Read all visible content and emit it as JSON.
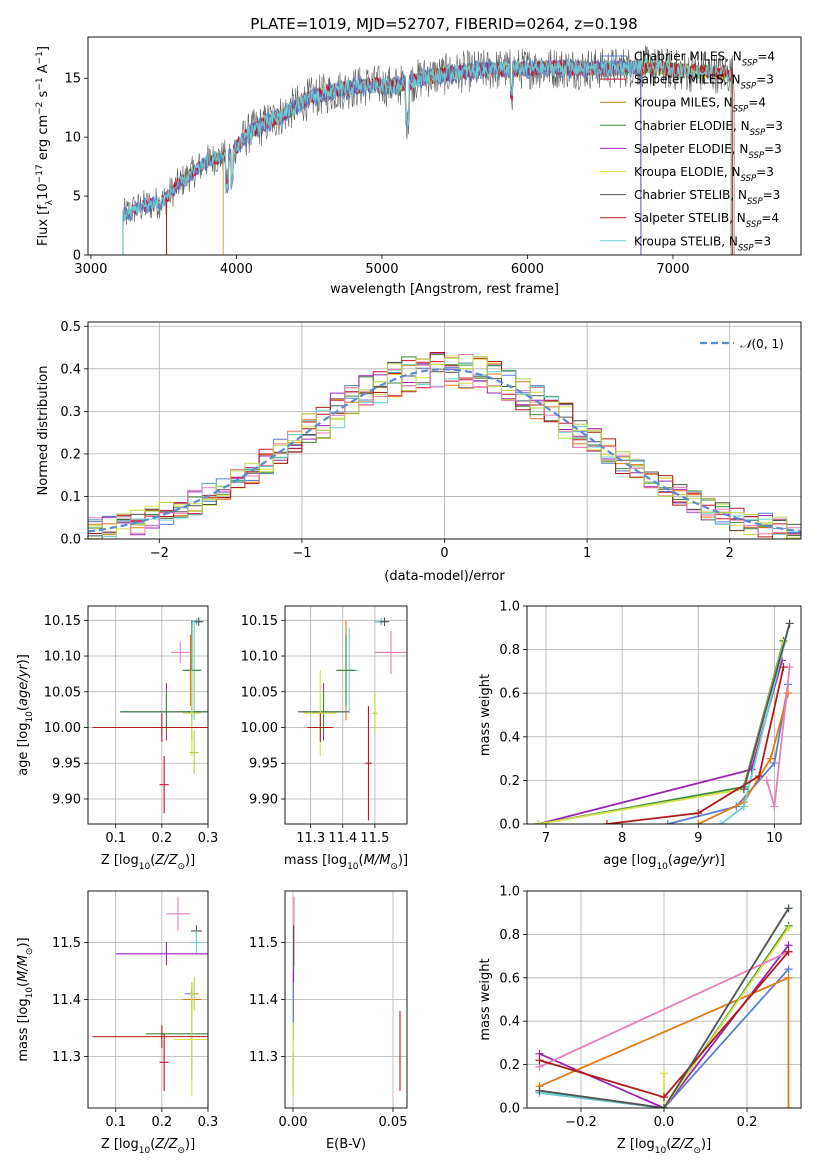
{
  "figure": {
    "title": "PLATE=1019, MJD=52707, FIBERID=0264, z=0.198"
  },
  "colors": {
    "series": [
      "#5b7fcf",
      "#c8102e",
      "#e07b19",
      "#3d8a3d",
      "#9b25b3",
      "#d8e04a",
      "#555555",
      "#b01c1c",
      "#6dd1d1",
      "#e87fb8",
      "#b5d642"
    ]
  },
  "chart_data": [
    {
      "id": "spectrum",
      "type": "line",
      "xlabel": "wavelength [Angstrom, rest frame]",
      "ylabel": "Flux [f_λ 10^-17 erg cm^-2 s^-1 A^-1]",
      "xlim": [
        2980,
        7880
      ],
      "ylim": [
        0,
        18.5
      ],
      "xticks": [
        3000,
        4000,
        5000,
        6000,
        7000
      ],
      "yticks": [
        0,
        5,
        10,
        15
      ],
      "grid": false,
      "legend_position": "right",
      "series": [
        {
          "name": "Chabrier MILES, N_SSP=4",
          "color": "#5b7fcf"
        },
        {
          "name": "Salpeter MILES, N_SSP=3",
          "color": "#c8102e"
        },
        {
          "name": "Kroupa MILES, N_SSP=4",
          "color": "#b8860b"
        },
        {
          "name": "Chabrier ELODIE, N_SSP=3",
          "color": "#3d8a3d"
        },
        {
          "name": "Salpeter ELODIE, N_SSP=3",
          "color": "#9b25b3"
        },
        {
          "name": "Kroupa ELODIE, N_SSP=3",
          "color": "#d8e04a"
        },
        {
          "name": "Chabrier STELIB, N_SSP=3",
          "color": "#555555"
        },
        {
          "name": "Salpeter STELIB, N_SSP=4",
          "color": "#b01c1c"
        },
        {
          "name": "Kroupa STELIB, N_SSP=3",
          "color": "#6dd1d1"
        }
      ],
      "spectrum_anchors": {
        "x": [
          3220,
          3300,
          3500,
          3600,
          3800,
          3950,
          4100,
          4300,
          4500,
          4700,
          4900,
          5100,
          5300,
          5600,
          5900,
          6200,
          6500,
          6800,
          7100,
          7400
        ],
        "y": [
          3.3,
          3.9,
          4.6,
          6.0,
          8.0,
          8.5,
          10.5,
          11.8,
          13.3,
          14.0,
          14.4,
          14.3,
          15.1,
          15.6,
          15.8,
          15.9,
          15.8,
          16.0,
          15.6,
          15.4
        ]
      }
    },
    {
      "id": "residuals",
      "type": "line",
      "xlabel": "(data-model)/error",
      "ylabel": "Normed distribution",
      "xlim": [
        -2.5,
        2.5
      ],
      "ylim": [
        0,
        0.51
      ],
      "xticks": [
        -2,
        -1,
        0,
        1,
        2
      ],
      "yticks": [
        0.0,
        0.1,
        0.2,
        0.3,
        0.4,
        0.5
      ],
      "grid": true,
      "legend_position": "top-right",
      "normal_label": "N(0,1)",
      "bins": 50
    },
    {
      "id": "age-vs-Z",
      "type": "scatter",
      "xlabel": "Z [log10(Z/Z☉)]",
      "ylabel": "age [log10(age/yr)]",
      "xlim": [
        0.04,
        0.3
      ],
      "ylim": [
        9.865,
        10.17
      ],
      "xticks": [
        0.1,
        0.2,
        0.3
      ],
      "yticks": [
        9.9,
        9.95,
        10.0,
        10.05,
        10.1,
        10.15
      ],
      "grid": true,
      "points": [
        {
          "x": 0.275,
          "y": 10.148,
          "xerr": 0.012,
          "yerr": 0.004,
          "color": "#5b7fcf"
        },
        {
          "x": 0.276,
          "y": 10.148,
          "xerr": 0.012,
          "yerr": 0.005,
          "color": "#6dd1d1"
        },
        {
          "x": 0.28,
          "y": 10.148,
          "xerr": 0.01,
          "yerr": 0.006,
          "color": "#555555"
        },
        {
          "x": 0.24,
          "y": 10.105,
          "xerr": 0.02,
          "yerr": 0.015,
          "color": "#e87fb8"
        },
        {
          "x": 0.262,
          "y": 10.08,
          "xerr": 0.015,
          "yerr": 0.05,
          "color": "#e07b19"
        },
        {
          "x": 0.27,
          "y": 10.08,
          "xerr": 0.015,
          "yerr": 0.07,
          "color": "#6dd1d1"
        },
        {
          "x": 0.265,
          "y": 10.08,
          "xerr": 0.02,
          "yerr": 0.07,
          "color": "#3d8a3d"
        },
        {
          "x": 0.21,
          "y": 10.022,
          "xerr": 0.1,
          "yerr": 0.04,
          "color": "#9b25b3"
        },
        {
          "x": 0.265,
          "y": 10.022,
          "xerr": 0.02,
          "yerr": 0.04,
          "color": "#5b7fcf"
        },
        {
          "x": 0.21,
          "y": 10.022,
          "xerr": 0.1,
          "yerr": 0.03,
          "color": "#3d8a3d"
        },
        {
          "x": 0.265,
          "y": 10.02,
          "xerr": 0.02,
          "yerr": 0.06,
          "color": "#d8e04a"
        },
        {
          "x": 0.2,
          "y": 10.0,
          "xerr": 0.15,
          "yerr": 0.02,
          "color": "#b01c1c"
        },
        {
          "x": 0.205,
          "y": 9.92,
          "xerr": 0.01,
          "yerr": 0.04,
          "color": "#c8102e"
        },
        {
          "x": 0.27,
          "y": 9.965,
          "xerr": 0.01,
          "yerr": 0.03,
          "color": "#b5d642"
        }
      ]
    },
    {
      "id": "age-vs-mass",
      "type": "scatter",
      "xlabel": "mass [log10(M/M☉)]",
      "ylabel": "",
      "xlim": [
        11.22,
        11.6
      ],
      "ylim": [
        9.865,
        10.17
      ],
      "xticks": [
        11.3,
        11.4,
        11.5
      ],
      "yticks": [
        9.9,
        9.95,
        10.0,
        10.05,
        10.1,
        10.15
      ],
      "grid": true,
      "points": [
        {
          "x": 11.52,
          "y": 10.148,
          "xerr": 0.02,
          "yerr": 0.004,
          "color": "#5b7fcf"
        },
        {
          "x": 11.52,
          "y": 10.148,
          "xerr": 0.02,
          "yerr": 0.005,
          "color": "#6dd1d1"
        },
        {
          "x": 11.53,
          "y": 10.148,
          "xerr": 0.015,
          "yerr": 0.006,
          "color": "#555555"
        },
        {
          "x": 11.55,
          "y": 10.105,
          "xerr": 0.05,
          "yerr": 0.03,
          "color": "#e87fb8"
        },
        {
          "x": 11.41,
          "y": 10.08,
          "xerr": 0.03,
          "yerr": 0.07,
          "color": "#e07b19"
        },
        {
          "x": 11.42,
          "y": 10.08,
          "xerr": 0.03,
          "yerr": 0.06,
          "color": "#6dd1d1"
        },
        {
          "x": 11.41,
          "y": 10.08,
          "xerr": 0.03,
          "yerr": 0.05,
          "color": "#3d8a3d"
        },
        {
          "x": 11.34,
          "y": 10.022,
          "xerr": 0.08,
          "yerr": 0.04,
          "color": "#9b25b3"
        },
        {
          "x": 11.34,
          "y": 10.022,
          "xerr": 0.07,
          "yerr": 0.03,
          "color": "#3d8a3d"
        },
        {
          "x": 11.33,
          "y": 10.02,
          "xerr": 0.05,
          "yerr": 0.06,
          "color": "#d8e04a"
        },
        {
          "x": 11.33,
          "y": 10.0,
          "xerr": 0.04,
          "yerr": 0.02,
          "color": "#b01c1c"
        },
        {
          "x": 11.48,
          "y": 9.95,
          "xerr": 0.01,
          "yerr": 0.08,
          "color": "#c8102e"
        },
        {
          "x": 11.5,
          "y": 10.02,
          "xerr": 0.01,
          "yerr": 0.03,
          "color": "#b5d642"
        }
      ]
    },
    {
      "id": "massweight-vs-age",
      "type": "line",
      "xlabel": "age [log10(age/yr)]",
      "ylabel": "mass weight",
      "xlim": [
        6.75,
        10.35
      ],
      "ylim": [
        0,
        1.0
      ],
      "xticks": [
        7,
        8,
        9,
        10
      ],
      "yticks": [
        0.0,
        0.2,
        0.4,
        0.6,
        0.8,
        1.0
      ],
      "grid": true,
      "series": [
        {
          "color": "#5b7fcf",
          "x": [
            8.6,
            9.5,
            10.0,
            10.18
          ],
          "y": [
            0.0,
            0.08,
            0.28,
            0.64
          ]
        },
        {
          "color": "#9b25b3",
          "x": [
            6.9,
            9.7,
            10.1
          ],
          "y": [
            0.0,
            0.25,
            0.75
          ]
        },
        {
          "color": "#e07b19",
          "x": [
            9.0,
            9.6,
            9.95,
            10.18
          ],
          "y": [
            0.0,
            0.1,
            0.3,
            0.6
          ]
        },
        {
          "color": "#3d8a3d",
          "x": [
            6.9,
            9.6,
            10.12
          ],
          "y": [
            0.0,
            0.17,
            0.84
          ]
        },
        {
          "color": "#d8e04a",
          "x": [
            6.9,
            9.6,
            10.12
          ],
          "y": [
            0.0,
            0.16,
            0.83
          ]
        },
        {
          "color": "#6dd1d1",
          "x": [
            9.3,
            9.6,
            10.2
          ],
          "y": [
            0.0,
            0.08,
            0.92
          ]
        },
        {
          "color": "#e87fb8",
          "x": [
            9.9,
            10.0,
            10.2
          ],
          "y": [
            0.2,
            0.08,
            0.72
          ]
        },
        {
          "color": "#b01c1c",
          "x": [
            7.8,
            9.0,
            9.8,
            10.12
          ],
          "y": [
            0.0,
            0.05,
            0.22,
            0.72
          ]
        },
        {
          "color": "#555555",
          "x": [
            9.6,
            10.2
          ],
          "y": [
            0.16,
            0.92
          ]
        }
      ]
    },
    {
      "id": "mass-vs-Z",
      "type": "scatter",
      "xlabel": "Z [log10(Z/Z☉)]",
      "ylabel": "mass [log10(M/M☉)]",
      "xlim": [
        0.04,
        0.3
      ],
      "ylim": [
        11.21,
        11.59
      ],
      "xticks": [
        0.1,
        0.2,
        0.3
      ],
      "yticks": [
        11.3,
        11.4,
        11.5
      ],
      "grid": true,
      "points": [
        {
          "x": 0.235,
          "y": 11.55,
          "xerr": 0.025,
          "yerr": 0.03,
          "color": "#e87fb8"
        },
        {
          "x": 0.275,
          "y": 11.52,
          "xerr": 0.012,
          "yerr": 0.01,
          "color": "#555555"
        },
        {
          "x": 0.275,
          "y": 11.5,
          "xerr": 0.012,
          "yerr": 0.02,
          "color": "#6dd1d1"
        },
        {
          "x": 0.21,
          "y": 11.48,
          "xerr": 0.11,
          "yerr": 0.02,
          "color": "#9b25b3"
        },
        {
          "x": 0.265,
          "y": 11.41,
          "xerr": 0.015,
          "yerr": 0.02,
          "color": "#5b7fcf"
        },
        {
          "x": 0.265,
          "y": 11.4,
          "xerr": 0.02,
          "yerr": 0.02,
          "color": "#e07b19"
        },
        {
          "x": 0.265,
          "y": 11.34,
          "xerr": 0.1,
          "yerr": 0.08,
          "color": "#3d8a3d"
        },
        {
          "x": 0.265,
          "y": 11.33,
          "xerr": 0.04,
          "yerr": 0.1,
          "color": "#d8e04a"
        },
        {
          "x": 0.2,
          "y": 11.335,
          "xerr": 0.15,
          "yerr": 0.02,
          "color": "#b01c1c"
        },
        {
          "x": 0.205,
          "y": 11.29,
          "xerr": 0.01,
          "yerr": 0.05,
          "color": "#c8102e"
        },
        {
          "x": 0.27,
          "y": 11.41,
          "xerr": 0.01,
          "yerr": 0.03,
          "color": "#b5d642"
        }
      ]
    },
    {
      "id": "mass-vs-EBV",
      "type": "scatter",
      "xlabel": "E(B-V)",
      "ylabel": "",
      "xlim": [
        -0.004,
        0.057
      ],
      "ylim": [
        11.21,
        11.59
      ],
      "xticks": [
        0.0,
        0.05
      ],
      "yticks": [
        11.3,
        11.4,
        11.5
      ],
      "grid": true,
      "points": [
        {
          "x": 0.0005,
          "y": 11.52,
          "xerr": 0,
          "yerr": 0.06,
          "color": "#e87fb8"
        },
        {
          "x": 0.0003,
          "y": 11.48,
          "xerr": 0,
          "yerr": 0.05,
          "color": "#555555"
        },
        {
          "x": 0.0002,
          "y": 11.41,
          "xerr": 0,
          "yerr": 0.04,
          "color": "#9b25b3"
        },
        {
          "x": 0.0002,
          "y": 11.38,
          "xerr": 0,
          "yerr": 0.05,
          "color": "#5b7fcf"
        },
        {
          "x": 0.0001,
          "y": 11.3,
          "xerr": 0,
          "yerr": 0.06,
          "color": "#d8e04a"
        },
        {
          "x": 0.0001,
          "y": 11.27,
          "xerr": 0,
          "yerr": 0.04,
          "color": "#b5d642"
        },
        {
          "x": 0.0535,
          "y": 11.31,
          "xerr": 0,
          "yerr": 0.07,
          "color": "#b01c1c"
        }
      ]
    },
    {
      "id": "massweight-vs-Z",
      "type": "line",
      "xlabel": "Z [log10(Z/Z☉)]",
      "ylabel": "mass weight",
      "xlim": [
        -0.33,
        0.33
      ],
      "ylim": [
        0,
        1.0
      ],
      "xticks": [
        -0.2,
        0.0,
        0.2
      ],
      "yticks": [
        0.0,
        0.2,
        0.4,
        0.6,
        0.8,
        1.0
      ],
      "grid": true,
      "series": [
        {
          "color": "#5b7fcf",
          "x": [
            -0.3,
            0.0,
            0.3
          ],
          "y": [
            0.07,
            0.0,
            0.64
          ]
        },
        {
          "color": "#9b25b3",
          "x": [
            -0.3,
            0.0,
            0.3
          ],
          "y": [
            0.25,
            0.0,
            0.75
          ]
        },
        {
          "color": "#e07b19",
          "x": [
            -0.3,
            0.3,
            0.3
          ],
          "y": [
            0.1,
            0.6,
            0.0
          ]
        },
        {
          "color": "#3d8a3d",
          "x": [
            -0.3,
            0.0,
            0.3
          ],
          "y": [
            0.08,
            0.0,
            0.84
          ]
        },
        {
          "color": "#d8e04a",
          "x": [
            0.0,
            0.0,
            0.3
          ],
          "y": [
            0.16,
            0.0,
            0.83
          ]
        },
        {
          "color": "#6dd1d1",
          "x": [
            -0.3,
            0.0,
            0.3
          ],
          "y": [
            0.07,
            0.0,
            0.92
          ]
        },
        {
          "color": "#e87fb8",
          "x": [
            -0.3,
            0.3
          ],
          "y": [
            0.19,
            0.72
          ]
        },
        {
          "color": "#b01c1c",
          "x": [
            -0.3,
            0.0,
            0.3
          ],
          "y": [
            0.22,
            0.05,
            0.72
          ]
        },
        {
          "color": "#555555",
          "x": [
            -0.3,
            0.0,
            0.3
          ],
          "y": [
            0.08,
            0.0,
            0.92
          ]
        }
      ]
    }
  ]
}
